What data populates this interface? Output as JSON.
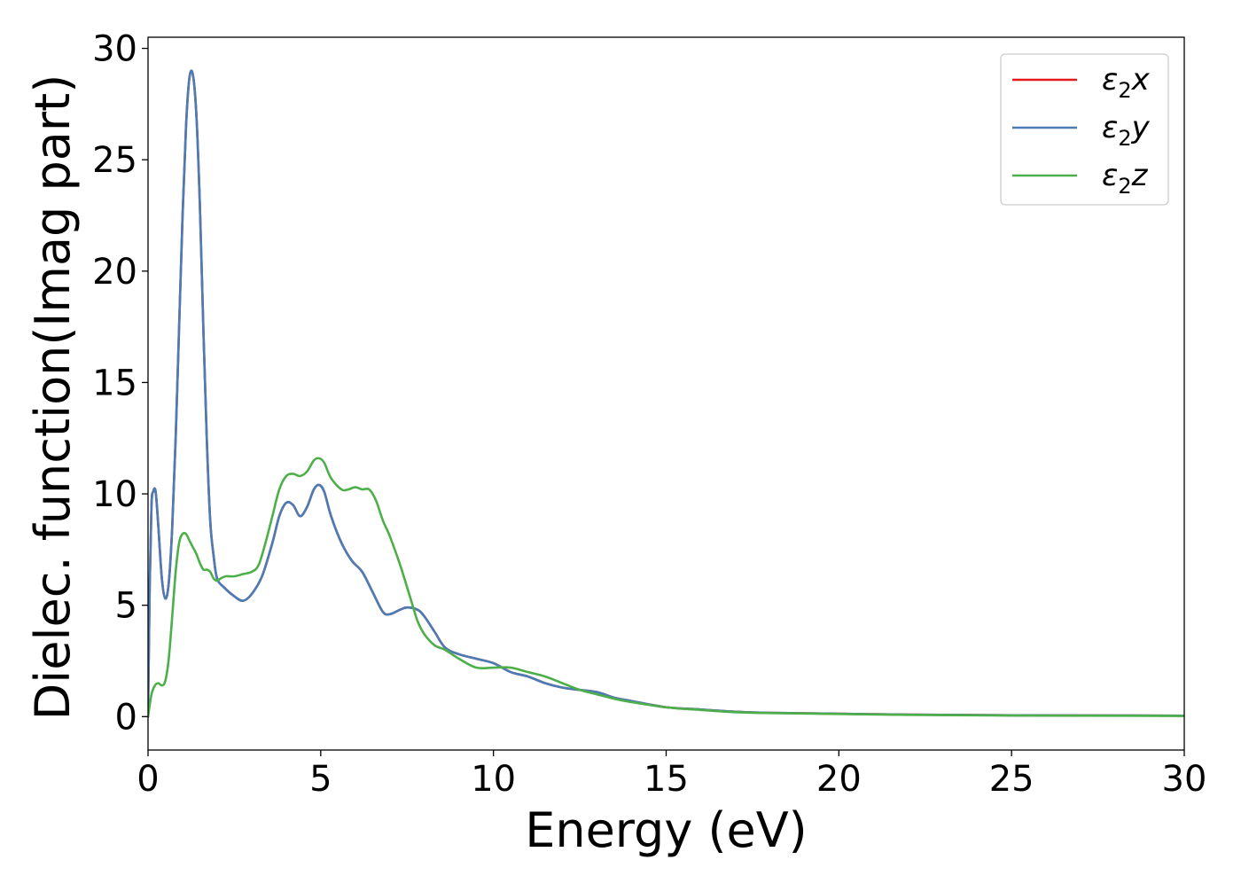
{
  "chart_data": {
    "type": "line",
    "title": "",
    "xlabel": "Energy (eV)",
    "ylabel": "Dielec. function(Imag part)",
    "xlim": [
      0,
      30
    ],
    "ylim": [
      -1.5,
      30.5
    ],
    "xticks": [
      0,
      5,
      10,
      15,
      20,
      25,
      30
    ],
    "yticks": [
      0,
      5,
      10,
      15,
      20,
      25,
      30
    ],
    "grid": false,
    "legend_position": "top-right",
    "series": [
      {
        "name": "x",
        "legend_base": "ε",
        "legend_sub": "2",
        "color": "#e41a1c",
        "x": [
          0,
          0.05,
          0.1,
          0.15,
          0.22,
          0.3,
          0.4,
          0.5,
          0.6,
          0.7,
          0.8,
          0.9,
          1.0,
          1.1,
          1.2,
          1.3,
          1.4,
          1.5,
          1.6,
          1.7,
          1.8,
          1.9,
          2.0,
          2.2,
          2.5,
          2.75,
          3.0,
          3.3,
          3.6,
          3.8,
          4.0,
          4.2,
          4.4,
          4.6,
          4.8,
          4.95,
          5.1,
          5.3,
          5.6,
          5.9,
          6.2,
          6.5,
          6.8,
          7.0,
          7.3,
          7.5,
          7.8,
          8.0,
          8.3,
          8.6,
          9.0,
          9.5,
          10.0,
          10.5,
          11.0,
          11.5,
          12.0,
          12.5,
          13.0,
          13.5,
          14.0,
          15.0,
          16.0,
          17.0,
          18.0,
          20.0,
          22.0,
          25.0,
          28.0,
          30.0
        ],
        "values": [
          0,
          6.0,
          9.5,
          10.1,
          10.1,
          8.5,
          6.2,
          5.3,
          6.0,
          8.5,
          12.5,
          17.5,
          22.5,
          26.5,
          28.7,
          28.8,
          27.0,
          23.0,
          17.5,
          12.5,
          8.8,
          7.2,
          6.2,
          5.8,
          5.4,
          5.2,
          5.5,
          6.3,
          7.8,
          9.0,
          9.6,
          9.5,
          9.0,
          9.4,
          10.2,
          10.4,
          10.1,
          9.0,
          7.8,
          7.0,
          6.5,
          5.6,
          4.7,
          4.6,
          4.8,
          4.9,
          4.8,
          4.5,
          3.8,
          3.1,
          2.8,
          2.6,
          2.4,
          2.0,
          1.8,
          1.5,
          1.3,
          1.2,
          1.1,
          0.85,
          0.7,
          0.42,
          0.32,
          0.22,
          0.17,
          0.13,
          0.09,
          0.06,
          0.05,
          0.04
        ]
      },
      {
        "name": "y",
        "legend_base": "ε",
        "legend_sub": "2",
        "color": "#4a7cb5",
        "x": [
          0,
          0.05,
          0.1,
          0.15,
          0.22,
          0.3,
          0.4,
          0.5,
          0.6,
          0.7,
          0.8,
          0.9,
          1.0,
          1.1,
          1.2,
          1.3,
          1.4,
          1.5,
          1.6,
          1.7,
          1.8,
          1.9,
          2.0,
          2.2,
          2.5,
          2.75,
          3.0,
          3.3,
          3.6,
          3.8,
          4.0,
          4.2,
          4.4,
          4.6,
          4.8,
          4.95,
          5.1,
          5.3,
          5.6,
          5.9,
          6.2,
          6.5,
          6.8,
          7.0,
          7.3,
          7.5,
          7.8,
          8.0,
          8.3,
          8.6,
          9.0,
          9.5,
          10.0,
          10.5,
          11.0,
          11.5,
          12.0,
          12.5,
          13.0,
          13.5,
          14.0,
          15.0,
          16.0,
          17.0,
          18.0,
          20.0,
          22.0,
          25.0,
          28.0,
          30.0
        ],
        "values": [
          0,
          6.0,
          9.5,
          10.1,
          10.1,
          8.5,
          6.2,
          5.3,
          6.0,
          8.5,
          12.5,
          17.5,
          22.5,
          26.5,
          28.7,
          28.8,
          27.0,
          23.0,
          17.5,
          12.5,
          8.8,
          7.2,
          6.2,
          5.8,
          5.4,
          5.2,
          5.5,
          6.3,
          7.8,
          9.0,
          9.6,
          9.5,
          9.0,
          9.4,
          10.2,
          10.4,
          10.1,
          9.0,
          7.8,
          7.0,
          6.5,
          5.6,
          4.7,
          4.6,
          4.8,
          4.9,
          4.8,
          4.5,
          3.8,
          3.1,
          2.8,
          2.6,
          2.4,
          2.0,
          1.8,
          1.5,
          1.3,
          1.2,
          1.1,
          0.85,
          0.7,
          0.42,
          0.32,
          0.22,
          0.17,
          0.13,
          0.09,
          0.06,
          0.05,
          0.04
        ]
      },
      {
        "name": "z",
        "legend_base": "ε",
        "legend_sub": "2",
        "color": "#4daf4a",
        "x": [
          0,
          0.1,
          0.2,
          0.3,
          0.4,
          0.5,
          0.6,
          0.7,
          0.8,
          0.9,
          1.0,
          1.1,
          1.2,
          1.3,
          1.4,
          1.5,
          1.6,
          1.7,
          1.8,
          1.9,
          2.0,
          2.1,
          2.25,
          2.5,
          2.75,
          3.0,
          3.2,
          3.4,
          3.6,
          3.8,
          4.0,
          4.2,
          4.4,
          4.6,
          4.8,
          4.95,
          5.1,
          5.3,
          5.6,
          5.8,
          6.0,
          6.2,
          6.4,
          6.6,
          6.8,
          7.0,
          7.3,
          7.6,
          7.8,
          8.0,
          8.3,
          8.6,
          9.0,
          9.5,
          10.0,
          10.5,
          11.0,
          11.5,
          12.0,
          12.5,
          13.0,
          13.5,
          14.0,
          15.0,
          16.0,
          17.0,
          18.0,
          20.0,
          22.0,
          25.0,
          28.0,
          30.0
        ],
        "values": [
          0,
          1.0,
          1.4,
          1.5,
          1.4,
          1.6,
          2.6,
          4.5,
          6.5,
          7.8,
          8.2,
          8.2,
          7.9,
          7.6,
          7.3,
          6.9,
          6.6,
          6.6,
          6.5,
          6.2,
          6.1,
          6.2,
          6.3,
          6.3,
          6.4,
          6.5,
          6.8,
          7.8,
          9.0,
          10.2,
          10.8,
          10.9,
          10.8,
          11.0,
          11.5,
          11.6,
          11.4,
          10.7,
          10.2,
          10.2,
          10.3,
          10.2,
          10.2,
          9.7,
          8.8,
          8.1,
          6.8,
          5.3,
          4.3,
          3.7,
          3.2,
          3.0,
          2.6,
          2.2,
          2.2,
          2.2,
          2.0,
          1.8,
          1.5,
          1.2,
          1.0,
          0.8,
          0.65,
          0.42,
          0.3,
          0.2,
          0.16,
          0.12,
          0.08,
          0.05,
          0.04,
          0.03
        ]
      }
    ]
  }
}
